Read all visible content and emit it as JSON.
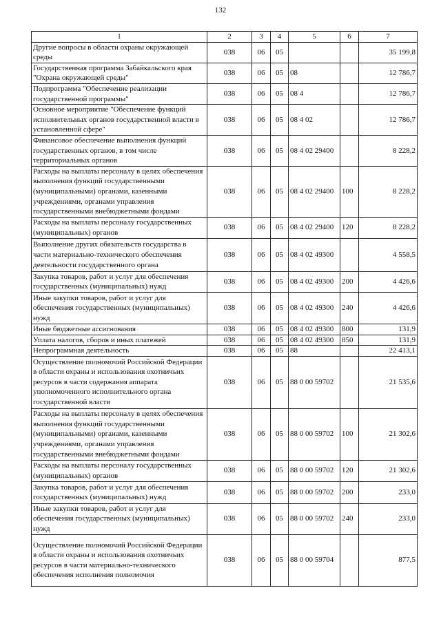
{
  "page_number": "132",
  "columns": [
    "1",
    "2",
    "3",
    "4",
    "5",
    "6",
    "7"
  ],
  "rows": [
    {
      "name": "Другие вопросы в области охраны окружающей среды",
      "c2": "038",
      "c3": "06",
      "c4": "05",
      "c5": "",
      "c6": "",
      "c7": "35 199,8"
    },
    {
      "name": "Государственная программа Забайкальского края \"Охрана окружающей среды\"",
      "c2": "038",
      "c3": "06",
      "c4": "05",
      "c5": "08",
      "c6": "",
      "c7": "12 786,7"
    },
    {
      "name": "Подпрограмма \"Обеспечение реализации государственной программы\"",
      "c2": "038",
      "c3": "06",
      "c4": "05",
      "c5": "08 4",
      "c6": "",
      "c7": "12 786,7"
    },
    {
      "name": "Основное мероприятие \"Обеспечение функций исполнительных органов государственной власти в установленной сфере\"",
      "c2": "038",
      "c3": "06",
      "c4": "05",
      "c5": "08 4 02",
      "c6": "",
      "c7": "12 786,7"
    },
    {
      "name": "Финансовое обеспечение выполнения функций государственных органов, в том числе территориальных органов",
      "c2": "038",
      "c3": "06",
      "c4": "05",
      "c5": "08 4 02 29400",
      "c6": "",
      "c7": "8 228,2"
    },
    {
      "name": "Расходы на выплаты персоналу в целях обеспечения выполнения функций государственными (муниципальными) органами, казенными учреждениями, органами управления государственными внебюджетными фондами",
      "c2": "038",
      "c3": "06",
      "c4": "05",
      "c5": "08 4 02 29400",
      "c6": "100",
      "c7": "8 228,2"
    },
    {
      "name": "Расходы на выплаты персоналу государственных (муниципальных) органов",
      "c2": "038",
      "c3": "06",
      "c4": "05",
      "c5": "08 4 02 29400",
      "c6": "120",
      "c7": "8 228,2"
    },
    {
      "name": "Выполнение других обязательств государства в части материально-технического обеспечения деятельности государственного органа",
      "c2": "038",
      "c3": "06",
      "c4": "05",
      "c5": "08 4 02 49300",
      "c6": "",
      "c7": "4 558,5"
    },
    {
      "name": "Закупка товаров, работ и услуг для обеспечения государственных (муниципальных) нужд",
      "c2": "038",
      "c3": "06",
      "c4": "05",
      "c5": "08 4 02 49300",
      "c6": "200",
      "c7": "4 426,6"
    },
    {
      "name": "Иные закупки товаров, работ и услуг для обеспечения государственных (муниципальных) нужд",
      "c2": "038",
      "c3": "06",
      "c4": "05",
      "c5": "08 4 02 49300",
      "c6": "240",
      "c7": "4 426,6"
    },
    {
      "name": "Иные бюджетные ассигнования",
      "c2": "038",
      "c3": "06",
      "c4": "05",
      "c5": "08 4 02 49300",
      "c6": "800",
      "c7": "131,9"
    },
    {
      "name": "Уплата налогов, сборов и иных платежей",
      "c2": "038",
      "c3": "06",
      "c4": "05",
      "c5": "08 4 02 49300",
      "c6": "850",
      "c7": "131,9"
    },
    {
      "name": "Непрограммная деятельность",
      "c2": "038",
      "c3": "06",
      "c4": "05",
      "c5": "88",
      "c6": "",
      "c7": "22 413,1"
    },
    {
      "name": "Осуществление полномочий Российской Федерации в области охраны и использования охотничьих ресурсов в части содержания аппарата уполномоченного исполнительного органа государственной власти",
      "c2": "038",
      "c3": "06",
      "c4": "05",
      "c5": "88 0 00 59702",
      "c6": "",
      "c7": "21 535,6"
    },
    {
      "name": "Расходы на выплаты персоналу в целях обеспечения выполнения функций государственными (муниципальными) органами, казенными учреждениями, органами управления государственными внебюджетными фондами",
      "c2": "038",
      "c3": "06",
      "c4": "05",
      "c5": "88 0 00 59702",
      "c6": "100",
      "c7": "21 302,6"
    },
    {
      "name": "Расходы на выплаты персоналу государственных (муниципальных) органов",
      "c2": "038",
      "c3": "06",
      "c4": "05",
      "c5": "88 0 00 59702",
      "c6": "120",
      "c7": "21 302,6"
    },
    {
      "name": "Закупка товаров, работ и услуг для обеспечения государственных (муниципальных) нужд",
      "c2": "038",
      "c3": "06",
      "c4": "05",
      "c5": "88 0 00 59702",
      "c6": "200",
      "c7": "233,0"
    },
    {
      "name": "Иные закупки товаров, работ и услуг для обеспечения государственных (муниципальных) нужд",
      "c2": "038",
      "c3": "06",
      "c4": "05",
      "c5": "88 0 00 59702",
      "c6": "240",
      "c7": "233,0"
    },
    {
      "name": "Осуществление полномочий Российской Федерации в области охраны и использования охотничьих ресурсов в части материально-технического обеспечения исполнения полномочия",
      "c2": "038",
      "c3": "06",
      "c4": "05",
      "c5": "88 0 00 59704",
      "c6": "",
      "c7": "877,5"
    }
  ]
}
